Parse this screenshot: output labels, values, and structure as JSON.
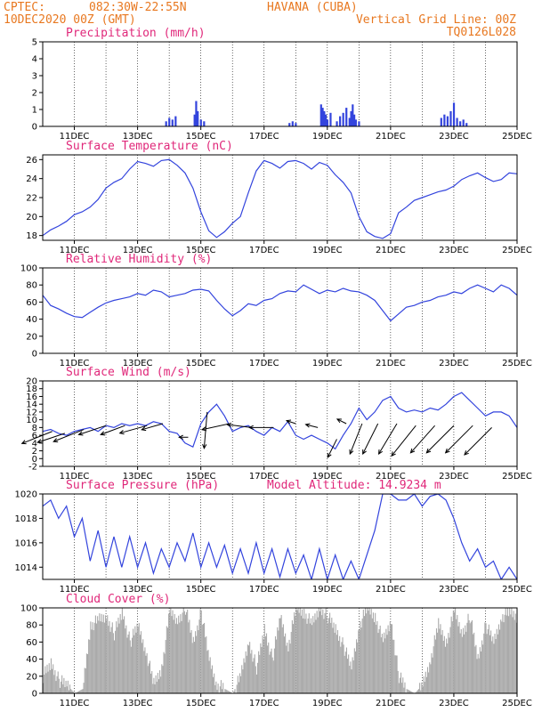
{
  "header": {
    "source": "CPTEC:",
    "coords": "082:30W-22:55N",
    "location": "HAVANA (CUBA)",
    "run": "10DEC2020 00Z (GMT)",
    "grid_note": "Vertical Grid Line: 00Z",
    "model": "TQ0126L028"
  },
  "colors": {
    "header": "#e87820",
    "title": "#e0287a",
    "line": "#3344dd",
    "bar": "#3344dd",
    "cloud": "#aaaaaa",
    "arrow": "#000000"
  },
  "x_axis": {
    "start": "10DEC",
    "end": "25DEC",
    "tick_labels": [
      "11DEC",
      "13DEC",
      "15DEC",
      "17DEC",
      "19DEC",
      "21DEC",
      "23DEC",
      "25DEC"
    ]
  },
  "chart_data": [
    {
      "id": "precip",
      "type": "bar",
      "title": "Precipitation (mm/h)",
      "ylim": [
        0,
        5
      ],
      "yticks": [
        "0",
        "1",
        "2",
        "3",
        "4",
        "5"
      ],
      "ytick_values": [
        0,
        1,
        2,
        3,
        4,
        5
      ],
      "x_days": [
        3.9,
        4.0,
        4.1,
        4.2,
        4.8,
        4.85,
        4.9,
        5.0,
        5.1,
        7.8,
        7.9,
        8.0,
        8.8,
        8.85,
        8.9,
        8.95,
        9.0,
        9.1,
        9.3,
        9.4,
        9.5,
        9.6,
        9.7,
        9.75,
        9.8,
        9.85,
        9.9,
        10.0,
        12.6,
        12.7,
        12.8,
        12.9,
        13.0,
        13.1,
        13.2,
        13.3,
        13.4
      ],
      "values": [
        0.3,
        0.5,
        0.4,
        0.6,
        0.7,
        1.5,
        0.9,
        0.4,
        0.3,
        0.2,
        0.3,
        0.2,
        1.3,
        1.1,
        0.9,
        0.7,
        0.4,
        0.8,
        0.3,
        0.6,
        0.8,
        1.1,
        0.5,
        0.9,
        1.3,
        0.7,
        0.4,
        0.3,
        0.5,
        0.7,
        0.6,
        0.9,
        1.4,
        0.5,
        0.3,
        0.4,
        0.2
      ]
    },
    {
      "id": "temp",
      "type": "line",
      "title": "Surface Temperature (nC)",
      "ylim": [
        17.5,
        26.5
      ],
      "yticks": [
        "18",
        "20",
        "22",
        "24",
        "26"
      ],
      "ytick_values": [
        18,
        20,
        22,
        24,
        26
      ],
      "x": [
        0,
        0.25,
        0.5,
        0.75,
        1,
        1.25,
        1.5,
        1.75,
        2,
        2.25,
        2.5,
        2.75,
        3,
        3.25,
        3.5,
        3.75,
        4,
        4.25,
        4.5,
        4.75,
        5,
        5.25,
        5.5,
        5.75,
        6,
        6.25,
        6.5,
        6.75,
        7,
        7.25,
        7.5,
        7.75,
        8,
        8.25,
        8.5,
        8.75,
        9,
        9.25,
        9.5,
        9.75,
        10,
        10.25,
        10.5,
        10.75,
        11,
        11.25,
        11.5,
        11.75,
        12,
        12.25,
        12.5,
        12.75,
        13,
        13.25,
        13.5,
        13.75,
        14,
        14.25,
        14.5,
        14.75,
        15
      ],
      "y": [
        18.0,
        18.6,
        19.0,
        19.5,
        20.2,
        20.5,
        21.0,
        21.8,
        23.0,
        23.6,
        24.0,
        25.0,
        25.8,
        25.6,
        25.3,
        25.9,
        26.0,
        25.4,
        24.6,
        23.0,
        20.5,
        18.5,
        17.8,
        18.4,
        19.3,
        20.0,
        22.5,
        24.8,
        25.9,
        25.6,
        25.1,
        25.8,
        25.9,
        25.6,
        25.0,
        25.7,
        25.4,
        24.4,
        23.6,
        22.5,
        20.0,
        18.4,
        17.9,
        17.7,
        18.2,
        20.4,
        21.0,
        21.7,
        22.0,
        22.3,
        22.6,
        22.8,
        23.2,
        23.9,
        24.3,
        24.6,
        24.1,
        23.7,
        23.9,
        24.6,
        24.5
      ]
    },
    {
      "id": "rh",
      "type": "line",
      "title": "Relative Humidity (%)",
      "ylim": [
        0,
        100
      ],
      "yticks": [
        "0",
        "20",
        "40",
        "60",
        "80",
        "100"
      ],
      "ytick_values": [
        0,
        20,
        40,
        60,
        80,
        100
      ],
      "x": [
        0,
        0.25,
        0.5,
        0.75,
        1,
        1.25,
        1.5,
        1.75,
        2,
        2.25,
        2.5,
        2.75,
        3,
        3.25,
        3.5,
        3.75,
        4,
        4.25,
        4.5,
        4.75,
        5,
        5.25,
        5.5,
        5.75,
        6,
        6.25,
        6.5,
        6.75,
        7,
        7.25,
        7.5,
        7.75,
        8,
        8.25,
        8.5,
        8.75,
        9,
        9.25,
        9.5,
        9.75,
        10,
        10.25,
        10.5,
        10.75,
        11,
        11.25,
        11.5,
        11.75,
        12,
        12.25,
        12.5,
        12.75,
        13,
        13.25,
        13.5,
        13.75,
        14,
        14.25,
        14.5,
        14.75,
        15
      ],
      "y": [
        68,
        56,
        52,
        47,
        43,
        42,
        48,
        54,
        59,
        62,
        64,
        66,
        70,
        68,
        74,
        72,
        66,
        68,
        70,
        74,
        75,
        73,
        62,
        52,
        44,
        50,
        58,
        56,
        62,
        64,
        70,
        73,
        72,
        80,
        75,
        70,
        74,
        72,
        76,
        73,
        72,
        68,
        62,
        50,
        38,
        46,
        54,
        56,
        60,
        62,
        66,
        68,
        72,
        70,
        76,
        80,
        76,
        72,
        80,
        76,
        68
      ]
    },
    {
      "id": "wind",
      "type": "line",
      "title": "Surface Wind (m/s)",
      "ylim": [
        -2,
        20
      ],
      "yticks": [
        "-2",
        "0",
        "2",
        "4",
        "6",
        "8",
        "10",
        "12",
        "14",
        "16",
        "18",
        "20"
      ],
      "ytick_values": [
        -2,
        0,
        2,
        4,
        6,
        8,
        10,
        12,
        14,
        16,
        18,
        20
      ],
      "x": [
        0,
        0.25,
        0.5,
        0.75,
        1,
        1.25,
        1.5,
        1.75,
        2,
        2.25,
        2.5,
        2.75,
        3,
        3.25,
        3.5,
        3.75,
        4,
        4.25,
        4.5,
        4.75,
        5,
        5.25,
        5.5,
        5.75,
        6,
        6.25,
        6.5,
        6.75,
        7,
        7.25,
        7.5,
        7.75,
        8,
        8.25,
        8.5,
        8.75,
        9,
        9.25,
        9.5,
        9.75,
        10,
        10.25,
        10.5,
        10.75,
        11,
        11.25,
        11.5,
        11.75,
        12,
        12.25,
        12.5,
        12.75,
        13,
        13.25,
        13.5,
        13.75,
        14,
        14.25,
        14.5,
        14.75,
        15
      ],
      "y": [
        7,
        7.5,
        6.5,
        6,
        7,
        7.5,
        8,
        7,
        8.5,
        8,
        9,
        8.5,
        9,
        8.5,
        9.5,
        9,
        7,
        6.5,
        4,
        3,
        9,
        12,
        14,
        11,
        7,
        8,
        8.5,
        7,
        6,
        8,
        7,
        9.5,
        6,
        5,
        6,
        5,
        4,
        2.5,
        6,
        9,
        13,
        10,
        12,
        15,
        16,
        13,
        12,
        12.5,
        12,
        13,
        12.5,
        14,
        16,
        17,
        15,
        13,
        11,
        12,
        12,
        11,
        8
      ]
    },
    {
      "id": "pressure",
      "type": "line",
      "title": "Surface Pressure (hPa)",
      "annotation": "Model Altitude: 14.9234 m",
      "ylim": [
        1013,
        1020
      ],
      "yticks": [
        "1014",
        "1016",
        "1018",
        "1020"
      ],
      "ytick_values": [
        1014,
        1016,
        1018,
        1020
      ],
      "x": [
        0,
        0.25,
        0.5,
        0.75,
        1,
        1.25,
        1.5,
        1.75,
        2,
        2.25,
        2.5,
        2.75,
        3,
        3.25,
        3.5,
        3.75,
        4,
        4.25,
        4.5,
        4.75,
        5,
        5.25,
        5.5,
        5.75,
        6,
        6.25,
        6.5,
        6.75,
        7,
        7.25,
        7.5,
        7.75,
        8,
        8.25,
        8.5,
        8.75,
        9,
        9.25,
        9.5,
        9.75,
        10,
        10.25,
        10.5,
        10.75,
        11,
        11.25,
        11.5,
        11.75,
        12,
        12.25,
        12.5,
        12.75,
        13,
        13.25,
        13.5,
        13.75,
        14,
        14.25,
        14.5,
        14.75,
        15
      ],
      "y": [
        1019,
        1019.5,
        1018,
        1019,
        1016.5,
        1018,
        1014.5,
        1017,
        1014,
        1016.5,
        1014,
        1016.5,
        1014,
        1016,
        1013.5,
        1015.5,
        1014,
        1016,
        1014.5,
        1016.8,
        1014,
        1016,
        1014,
        1015.8,
        1013.5,
        1015.5,
        1013.5,
        1016,
        1013.5,
        1015.5,
        1013.2,
        1015.5,
        1013.5,
        1015,
        1013,
        1015.5,
        1013,
        1015,
        1013,
        1014.5,
        1013,
        1015,
        1017,
        1020,
        1020,
        1019.5,
        1019.5,
        1020,
        1019,
        1019.8,
        1020,
        1019.5,
        1018,
        1016,
        1014.5,
        1015.5,
        1014,
        1014.5,
        1013,
        1014,
        1013
      ]
    },
    {
      "id": "cloud",
      "type": "area",
      "title": "Cloud Cover (%)",
      "ylim": [
        0,
        100
      ],
      "yticks": [
        "0",
        "20",
        "40",
        "60",
        "80",
        "100"
      ],
      "ytick_values": [
        0,
        20,
        40,
        60,
        80,
        100
      ],
      "x": [
        0,
        0.25,
        0.5,
        0.75,
        1,
        1.25,
        1.5,
        1.75,
        2,
        2.25,
        2.5,
        2.75,
        3,
        3.25,
        3.5,
        3.75,
        4,
        4.25,
        4.5,
        4.75,
        5,
        5.25,
        5.5,
        5.75,
        6,
        6.25,
        6.5,
        6.75,
        7,
        7.25,
        7.5,
        7.75,
        8,
        8.25,
        8.5,
        8.75,
        9,
        9.25,
        9.5,
        9.75,
        10,
        10.25,
        10.5,
        10.75,
        11,
        11.25,
        11.5,
        11.75,
        12,
        12.25,
        12.5,
        12.75,
        13,
        13.25,
        13.5,
        13.75,
        14,
        14.25,
        14.5,
        14.75,
        15
      ],
      "y": [
        20,
        35,
        15,
        10,
        0,
        5,
        80,
        85,
        90,
        70,
        95,
        60,
        80,
        50,
        10,
        30,
        95,
        85,
        100,
        60,
        95,
        40,
        10,
        5,
        0,
        20,
        60,
        30,
        75,
        40,
        90,
        55,
        100,
        95,
        80,
        100,
        90,
        75,
        55,
        30,
        80,
        100,
        90,
        60,
        85,
        20,
        5,
        0,
        10,
        40,
        80,
        60,
        95,
        70,
        90,
        40,
        80,
        60,
        90,
        95,
        90
      ]
    }
  ],
  "wind_vectors": [
    {
      "x": 0.3,
      "y": 7,
      "u": -1,
      "v": -0.4
    },
    {
      "x": 0.7,
      "y": 6.5,
      "u": -0.9,
      "v": -0.3
    },
    {
      "x": 1.3,
      "y": 7.5,
      "u": -1,
      "v": -0.4
    },
    {
      "x": 2.0,
      "y": 8.5,
      "u": -0.9,
      "v": -0.3
    },
    {
      "x": 2.6,
      "y": 8.5,
      "u": -0.8,
      "v": -0.3
    },
    {
      "x": 3.3,
      "y": 8.5,
      "u": -0.9,
      "v": -0.25
    },
    {
      "x": 3.8,
      "y": 9,
      "u": -0.7,
      "v": -0.2
    },
    {
      "x": 4.6,
      "y": 5.5,
      "u": -0.3,
      "v": 0
    },
    {
      "x": 5.2,
      "y": 12,
      "u": -0.1,
      "v": -1.2
    },
    {
      "x": 5.9,
      "y": 9,
      "u": -0.9,
      "v": -0.2
    },
    {
      "x": 6.6,
      "y": 8,
      "u": -0.8,
      "v": 0.1
    },
    {
      "x": 7.3,
      "y": 8,
      "u": -0.8,
      "v": 0
    },
    {
      "x": 8.0,
      "y": 9,
      "u": -0.3,
      "v": 0.1
    },
    {
      "x": 8.7,
      "y": 8,
      "u": -0.4,
      "v": 0.1
    },
    {
      "x": 9.3,
      "y": 5,
      "u": -0.3,
      "v": -0.6
    },
    {
      "x": 9.6,
      "y": 9,
      "u": -0.3,
      "v": 0.15
    },
    {
      "x": 10.1,
      "y": 9,
      "u": -0.4,
      "v": -1.0
    },
    {
      "x": 10.6,
      "y": 9,
      "u": -0.5,
      "v": -1.0
    },
    {
      "x": 11.2,
      "y": 9,
      "u": -0.6,
      "v": -1.0
    },
    {
      "x": 11.8,
      "y": 8.5,
      "u": -0.8,
      "v": -1.0
    },
    {
      "x": 12.4,
      "y": 8.5,
      "u": -0.8,
      "v": -0.9
    },
    {
      "x": 13.0,
      "y": 8.5,
      "u": -0.9,
      "v": -0.9
    },
    {
      "x": 13.6,
      "y": 8.5,
      "u": -0.9,
      "v": -0.9
    },
    {
      "x": 14.2,
      "y": 8,
      "u": -0.9,
      "v": -0.9
    }
  ]
}
